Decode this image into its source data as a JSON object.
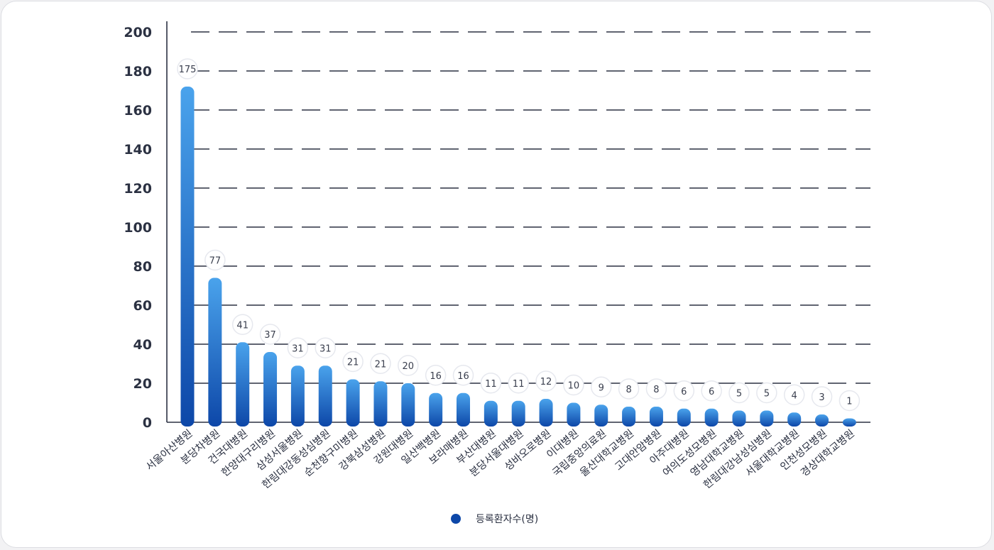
{
  "chart_data": {
    "type": "bar",
    "categories": [
      "서울아산병원",
      "분당차병원",
      "건국대병원",
      "한양대구리병원",
      "삼성서울병원",
      "한림대강동성심병원",
      "순천향구미병원",
      "강북삼성병원",
      "강원대병원",
      "일산백병원",
      "보라매병원",
      "부산대병원",
      "분당서울대병원",
      "성바오로병원",
      "이대병원",
      "국립중앙의료원",
      "울산대학교병원",
      "고대안암병원",
      "아주대병원",
      "여의도성모병원",
      "영남대학교병원",
      "한림대강남성심병원",
      "서울대학교병원",
      "인천성모병원",
      "경상대학교병원"
    ],
    "series": [
      {
        "name": "등록환자수(명)",
        "values": [
          175,
          77,
          41,
          37,
          31,
          31,
          21,
          21,
          20,
          16,
          16,
          11,
          11,
          12,
          10,
          9,
          8,
          8,
          6,
          6,
          5,
          5,
          4,
          3,
          1
        ]
      }
    ],
    "bar_heights_estimated": [
      172,
      74,
      41,
      36,
      29,
      29,
      22,
      21,
      20,
      15,
      15,
      11,
      11,
      12,
      10,
      9,
      8,
      8,
      7,
      7,
      6,
      6,
      5,
      4,
      2
    ],
    "ylim": [
      0,
      200
    ],
    "yticks": [
      0,
      20,
      40,
      60,
      80,
      100,
      120,
      140,
      160,
      180,
      200
    ],
    "grid": "dashed horizontal",
    "legend": "bottom-center",
    "colors": {
      "bar_top": "#4aa3ec",
      "bar_bottom": "#0d47a8",
      "legend_dot": "#0d47a8",
      "grid": "#2b3142"
    }
  }
}
